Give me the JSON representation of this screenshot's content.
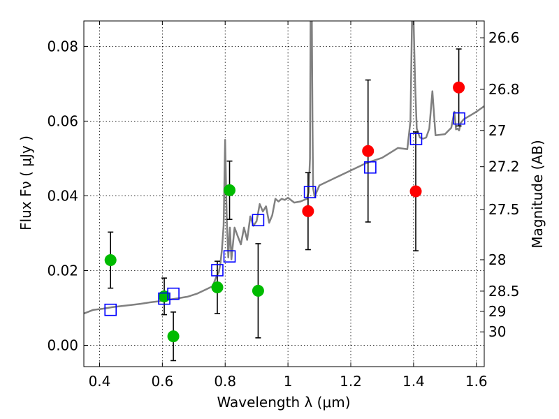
{
  "chart_data": {
    "type": "scatter",
    "xlabel": "Wavelength  λ (μm)",
    "ylabel": "Flux  Fν  ( μJy )",
    "y2label": "Magnitude (AB)",
    "xlim": [
      0.35,
      1.625
    ],
    "ylim": [
      -0.0057,
      0.0868
    ],
    "grid": true,
    "x_ticks": [
      0.4,
      0.6,
      0.8,
      1.0,
      1.2,
      1.4,
      1.6
    ],
    "x_tick_labels": [
      "0.4",
      "0.6",
      "0.8",
      "1",
      "1.2",
      "1.4",
      "1.6"
    ],
    "y_ticks": [
      0.0,
      0.02,
      0.04,
      0.06,
      0.08
    ],
    "y_tick_labels": [
      "0.00",
      "0.02",
      "0.04",
      "0.06",
      "0.08"
    ],
    "mag_ticks": [
      {
        "label": "26.6",
        "flux": 0.0823
      },
      {
        "label": "26.8",
        "flux": 0.0685
      },
      {
        "label": "27",
        "flux": 0.0575
      },
      {
        "label": "27.2",
        "flux": 0.0478
      },
      {
        "label": "27.5",
        "flux": 0.0363
      },
      {
        "label": "28",
        "flux": 0.0229
      },
      {
        "label": "28.5",
        "flux": 0.0145
      },
      {
        "label": "29",
        "flux": 0.0091
      },
      {
        "label": "30",
        "flux": 0.0036
      }
    ],
    "series": [
      {
        "marker": "circle",
        "color": "#00bb00",
        "points": [
          {
            "x": 0.435,
            "y": 0.0228,
            "err": 0.0075
          },
          {
            "x": 0.606,
            "y": 0.0131,
            "err": 0.0049
          },
          {
            "x": 0.635,
            "y": 0.0024,
            "err": 0.0065
          },
          {
            "x": 0.775,
            "y": 0.0155,
            "err": 0.007
          },
          {
            "x": 0.814,
            "y": 0.0415,
            "err": 0.0078
          },
          {
            "x": 0.905,
            "y": 0.0146,
            "err": 0.0126
          }
        ]
      },
      {
        "marker": "circle",
        "color": "#ff0000",
        "points": [
          {
            "x": 1.064,
            "y": 0.0359,
            "err": 0.0103
          },
          {
            "x": 1.255,
            "y": 0.052,
            "err": 0.019
          },
          {
            "x": 1.407,
            "y": 0.0412,
            "err": 0.0159
          },
          {
            "x": 1.544,
            "y": 0.069,
            "err": 0.0103
          }
        ]
      },
      {
        "marker": "open-square",
        "color": "#0000ff",
        "points": [
          {
            "x": 0.435,
            "y": 0.0095
          },
          {
            "x": 0.606,
            "y": 0.0125
          },
          {
            "x": 0.635,
            "y": 0.0138
          },
          {
            "x": 0.775,
            "y": 0.0201
          },
          {
            "x": 0.814,
            "y": 0.0238
          },
          {
            "x": 0.905,
            "y": 0.0335
          },
          {
            "x": 1.07,
            "y": 0.041
          },
          {
            "x": 1.262,
            "y": 0.0476
          },
          {
            "x": 1.408,
            "y": 0.0552
          },
          {
            "x": 1.545,
            "y": 0.0607
          }
        ]
      },
      {
        "type": "line",
        "color": "#808080",
        "x": [
          0.35,
          0.38,
          0.41,
          0.44,
          0.47,
          0.5,
          0.53,
          0.56,
          0.59,
          0.62,
          0.65,
          0.68,
          0.71,
          0.74,
          0.76,
          0.77,
          0.78,
          0.785,
          0.79,
          0.795,
          0.8,
          0.805,
          0.81,
          0.815,
          0.82,
          0.83,
          0.84,
          0.85,
          0.86,
          0.87,
          0.88,
          0.89,
          0.9,
          0.91,
          0.92,
          0.93,
          0.94,
          0.95,
          0.96,
          0.97,
          0.98,
          0.99,
          1.0,
          1.02,
          1.04,
          1.06,
          1.066,
          1.07,
          1.072,
          1.074,
          1.076,
          1.078,
          1.08,
          1.085,
          1.1,
          1.15,
          1.2,
          1.25,
          1.3,
          1.35,
          1.38,
          1.39,
          1.395,
          1.4,
          1.405,
          1.41,
          1.42,
          1.43,
          1.44,
          1.45,
          1.46,
          1.47,
          1.5,
          1.52,
          1.53,
          1.535,
          1.54,
          1.545,
          1.55,
          1.56,
          1.58,
          1.6,
          1.625
        ],
        "y": [
          0.0085,
          0.0095,
          0.0098,
          0.0102,
          0.0105,
          0.0108,
          0.0111,
          0.0115,
          0.0118,
          0.0122,
          0.0126,
          0.013,
          0.0138,
          0.015,
          0.0158,
          0.018,
          0.0196,
          0.022,
          0.0258,
          0.032,
          0.055,
          0.0338,
          0.0235,
          0.0315,
          0.023,
          0.0315,
          0.0292,
          0.027,
          0.0315,
          0.0282,
          0.0345,
          0.032,
          0.0332,
          0.0378,
          0.0358,
          0.0372,
          0.0328,
          0.0348,
          0.0392,
          0.0385,
          0.0392,
          0.0389,
          0.0395,
          0.0382,
          0.0385,
          0.0392,
          0.041,
          0.05,
          0.0868,
          0.0868,
          0.0868,
          0.06,
          0.042,
          0.0398,
          0.0428,
          0.0448,
          0.0468,
          0.0488,
          0.0502,
          0.0528,
          0.0525,
          0.06,
          0.0868,
          0.0868,
          0.07,
          0.058,
          0.0556,
          0.0553,
          0.0556,
          0.058,
          0.068,
          0.0562,
          0.0565,
          0.0582,
          0.0625,
          0.0578,
          0.058,
          0.0575,
          0.0595,
          0.0605,
          0.0615,
          0.0625,
          0.064
        ]
      }
    ]
  }
}
